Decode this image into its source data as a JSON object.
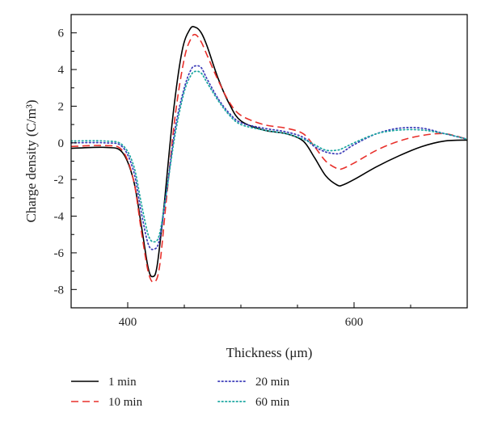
{
  "chart_data": {
    "type": "line",
    "title": "",
    "xlabel": "Thickness (μm)",
    "ylabel": "Charge density (C/m³)",
    "xlim": [
      350,
      700
    ],
    "ylim": [
      -9,
      7
    ],
    "x_ticks": [
      400,
      600
    ],
    "y_ticks": [
      -8,
      -6,
      -4,
      -2,
      0,
      2,
      4,
      6
    ],
    "grid": false,
    "legend_position": "bottom",
    "series": [
      {
        "name": "1 min",
        "color": "#000000",
        "dash": "solid",
        "x": [
          350,
          380,
          395,
          405,
          412,
          418,
          422,
          426,
          432,
          440,
          448,
          455,
          460,
          465,
          470,
          480,
          490,
          500,
          520,
          540,
          555,
          565,
          575,
          585,
          590,
          600,
          620,
          640,
          660,
          680,
          700
        ],
        "y": [
          -0.3,
          -0.25,
          -0.5,
          -2.0,
          -4.5,
          -6.8,
          -7.3,
          -6.7,
          -3.5,
          1.5,
          5.0,
          6.2,
          6.3,
          6.0,
          5.3,
          3.5,
          2.1,
          1.2,
          0.7,
          0.5,
          0.1,
          -0.8,
          -1.8,
          -2.3,
          -2.3,
          -2.0,
          -1.3,
          -0.7,
          -0.2,
          0.1,
          0.15
        ]
      },
      {
        "name": "10 min",
        "color": "#e8302b",
        "dash": "dashed",
        "x": [
          350,
          380,
          395,
          405,
          412,
          418,
          423,
          428,
          434,
          442,
          450,
          456,
          460,
          465,
          470,
          480,
          490,
          500,
          520,
          540,
          555,
          565,
          575,
          585,
          590,
          600,
          620,
          640,
          660,
          680,
          700
        ],
        "y": [
          -0.2,
          -0.15,
          -0.4,
          -2.0,
          -4.8,
          -7.0,
          -7.6,
          -6.8,
          -3.2,
          1.5,
          4.6,
          5.7,
          5.9,
          5.5,
          4.8,
          3.4,
          2.2,
          1.5,
          1.0,
          0.8,
          0.5,
          -0.2,
          -1.0,
          -1.4,
          -1.4,
          -1.1,
          -0.4,
          0.1,
          0.4,
          0.5,
          0.2
        ]
      },
      {
        "name": "20 min",
        "color": "#3a3ab8",
        "dash": "dotted",
        "x": [
          350,
          380,
          395,
          405,
          412,
          418,
          423,
          428,
          434,
          442,
          450,
          456,
          460,
          465,
          470,
          480,
          490,
          500,
          520,
          540,
          555,
          565,
          575,
          585,
          590,
          600,
          620,
          640,
          660,
          680,
          700
        ],
        "y": [
          0.0,
          0.0,
          -0.2,
          -1.5,
          -3.8,
          -5.5,
          -5.8,
          -5.3,
          -2.8,
          0.8,
          3.0,
          4.0,
          4.2,
          4.1,
          3.5,
          2.4,
          1.6,
          1.1,
          0.8,
          0.6,
          0.3,
          -0.2,
          -0.5,
          -0.6,
          -0.5,
          -0.1,
          0.5,
          0.8,
          0.8,
          0.5,
          0.2
        ]
      },
      {
        "name": "60 min",
        "color": "#1aa6a0",
        "dash": "dotted",
        "x": [
          350,
          380,
          395,
          405,
          412,
          418,
          423,
          428,
          434,
          442,
          450,
          456,
          460,
          465,
          470,
          480,
          490,
          500,
          520,
          540,
          555,
          565,
          575,
          585,
          590,
          600,
          620,
          640,
          660,
          680,
          700
        ],
        "y": [
          0.1,
          0.1,
          -0.1,
          -1.2,
          -3.3,
          -5.0,
          -5.4,
          -5.0,
          -2.8,
          0.5,
          2.8,
          3.7,
          3.9,
          3.8,
          3.3,
          2.3,
          1.5,
          1.0,
          0.7,
          0.5,
          0.2,
          -0.1,
          -0.4,
          -0.4,
          -0.3,
          0.0,
          0.5,
          0.7,
          0.7,
          0.5,
          0.2
        ]
      }
    ]
  }
}
